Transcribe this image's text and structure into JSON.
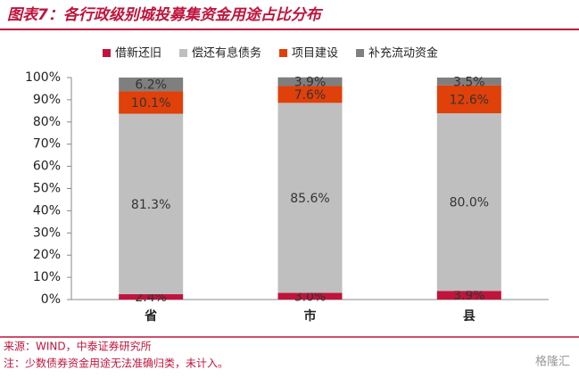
{
  "title": "图表7：各行政级别城投募集资金用途占比分布",
  "chart_data": {
    "type": "stacked_bar",
    "categories": [
      "省",
      "市",
      "县"
    ],
    "series": [
      {
        "name": "借新还旧",
        "color": "#c0143c",
        "values": [
          2.4,
          3.0,
          3.9
        ],
        "value_labels": [
          "2.4%",
          "3.0%",
          "3.9%"
        ]
      },
      {
        "name": "偿还有息债务",
        "color": "#bfbfbf",
        "values": [
          81.3,
          85.6,
          80.0
        ],
        "value_labels": [
          "81.3%",
          "85.6%",
          "80.0%"
        ]
      },
      {
        "name": "项目建设",
        "color": "#e0400a",
        "values": [
          10.1,
          7.6,
          12.6
        ],
        "value_labels": [
          "10.1%",
          "7.6%",
          "12.6%"
        ]
      },
      {
        "name": "补充流动资金",
        "color": "#7f7f7f",
        "values": [
          6.2,
          3.9,
          3.5
        ],
        "value_labels": [
          "6.2%",
          "3.9%",
          "3.5%"
        ]
      }
    ],
    "ylim": [
      0,
      100
    ],
    "yticks": [
      {
        "value": 0,
        "label": "0%"
      },
      {
        "value": 10,
        "label": "10%"
      },
      {
        "value": 20,
        "label": "20%"
      },
      {
        "value": 30,
        "label": "30%"
      },
      {
        "value": 40,
        "label": "40%"
      },
      {
        "value": 50,
        "label": "50%"
      },
      {
        "value": 60,
        "label": "60%"
      },
      {
        "value": 70,
        "label": "70%"
      },
      {
        "value": 80,
        "label": "80%"
      },
      {
        "value": 90,
        "label": "90%"
      },
      {
        "value": 100,
        "label": "100%"
      }
    ],
    "legend": "top"
  },
  "source": "来源：WIND，中泰证券研究所",
  "note": "注：少数债券资金用途无法准确归类，未计入。",
  "watermark": "格隆汇"
}
